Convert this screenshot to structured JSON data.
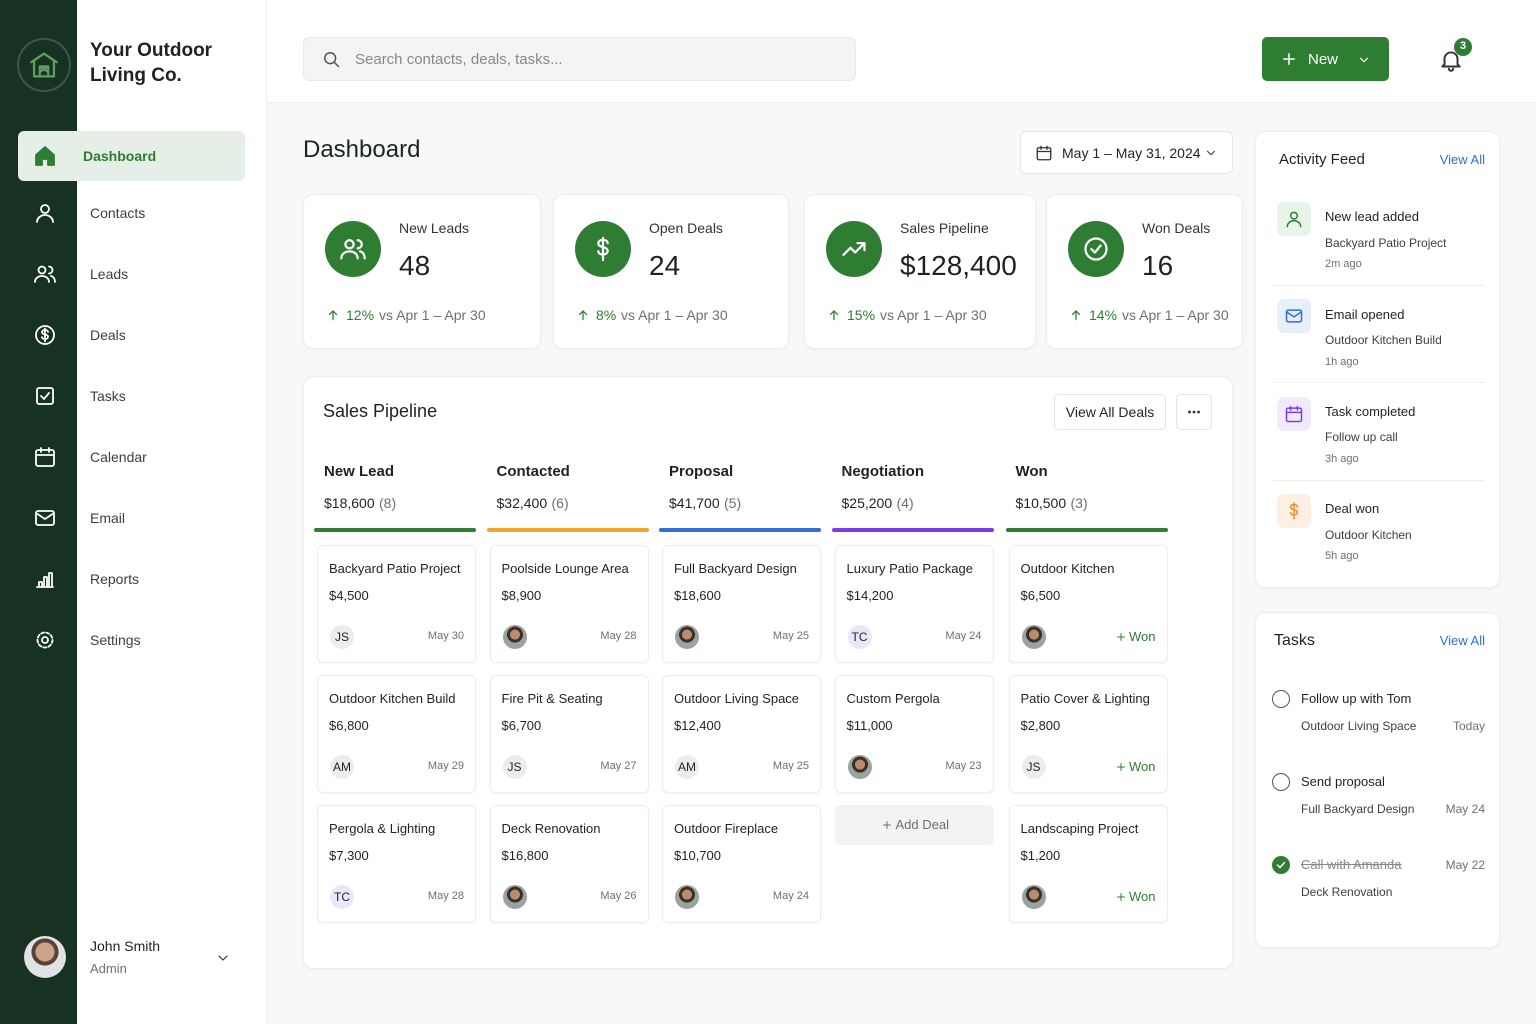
{
  "brand": {
    "name": "Your Outdoor Living Co."
  },
  "nav": [
    "Dashboard",
    "Contacts",
    "Leads",
    "Deals",
    "Tasks",
    "Calendar",
    "Email",
    "Reports",
    "Settings"
  ],
  "user": {
    "name": "John Smith",
    "role": "Admin"
  },
  "header": {
    "search_placeholder": "Search contacts, deals, tasks...",
    "new_button": "New",
    "notifications": "3"
  },
  "page": {
    "title": "Dashboard",
    "date_range": "May 1 – May 31, 2024"
  },
  "stats": [
    {
      "label": "New Leads",
      "value": "48",
      "change": "12%",
      "compare": "vs Apr 1 – Apr 30"
    },
    {
      "label": "Open Deals",
      "value": "24",
      "change": "8%",
      "compare": "vs Apr 1 – Apr 30"
    },
    {
      "label": "Sales Pipeline",
      "value": "$128,400",
      "change": "15%",
      "compare": "vs Apr 1 – Apr 30"
    },
    {
      "label": "Won Deals",
      "value": "16",
      "change": "14%",
      "compare": "vs Apr 1 – Apr 30"
    }
  ],
  "pipeline": {
    "title": "Sales Pipeline",
    "view_all": "View All Deals",
    "columns": [
      {
        "name": "New Lead",
        "total": "$18,600",
        "count": "(8)",
        "deals": [
          {
            "title": "Backyard Patio Project",
            "amount": "$4,500",
            "owner": "JS",
            "date": "May 30"
          },
          {
            "title": "Outdoor Kitchen Build",
            "amount": "$6,800",
            "owner": "AM",
            "date": "May 29"
          },
          {
            "title": "Pergola & Lighting",
            "amount": "$7,300",
            "owner": "TC",
            "date": "May 28"
          }
        ]
      },
      {
        "name": "Contacted",
        "total": "$32,400",
        "count": "(6)",
        "deals": [
          {
            "title": "Poolside Lounge Area",
            "amount": "$8,900",
            "date": "May 28"
          },
          {
            "title": "Fire Pit & Seating",
            "amount": "$6,700",
            "owner": "JS",
            "date": "May 27"
          },
          {
            "title": "Deck Renovation",
            "amount": "$16,800",
            "date": "May 26"
          }
        ]
      },
      {
        "name": "Proposal",
        "total": "$41,700",
        "count": "(5)",
        "deals": [
          {
            "title": "Full Backyard Design",
            "amount": "$18,600",
            "date": "May 25"
          },
          {
            "title": "Outdoor Living Space",
            "amount": "$12,400",
            "owner": "AM",
            "date": "May 25"
          },
          {
            "title": "Outdoor Fireplace",
            "amount": "$10,700",
            "date": "May 24"
          }
        ]
      },
      {
        "name": "Negotiation",
        "total": "$25,200",
        "count": "(4)",
        "add_deal": "Add Deal",
        "deals": [
          {
            "title": "Luxury Patio Package",
            "amount": "$14,200",
            "owner": "TC",
            "date": "May 24"
          },
          {
            "title": "Custom Pergola",
            "amount": "$11,000",
            "date": "May 23"
          }
        ]
      },
      {
        "name": "Won",
        "total": "$10,500",
        "count": "(3)",
        "deals": [
          {
            "title": "Outdoor Kitchen",
            "amount": "$6,500",
            "status": "Won"
          },
          {
            "title": "Patio Cover & Lighting",
            "amount": "$2,800",
            "owner": "JS",
            "status": "Won"
          },
          {
            "title": "Landscaping Project",
            "amount": "$1,200",
            "status": "Won"
          }
        ]
      }
    ]
  },
  "activity": {
    "title": "Activity Feed",
    "view_all": "View All",
    "items": [
      {
        "title": "New lead added",
        "subtitle": "Backyard Patio Project",
        "time": "2m ago"
      },
      {
        "title": "Email opened",
        "subtitle": "Outdoor Kitchen Build",
        "time": "1h ago"
      },
      {
        "title": "Task completed",
        "subtitle": "Follow up call",
        "time": "3h ago"
      },
      {
        "title": "Deal won",
        "subtitle": "Outdoor Kitchen",
        "time": "5h ago"
      }
    ]
  },
  "tasks": {
    "title": "Tasks",
    "view_all": "View All",
    "items": [
      {
        "title": "Follow up with Tom",
        "subtitle": "Outdoor Living Space",
        "due": "Today",
        "done": false
      },
      {
        "title": "Send proposal",
        "subtitle": "Full Backyard Design",
        "due": "May 24",
        "done": false
      },
      {
        "title": "Call with Amanda",
        "subtitle": "Deck Renovation",
        "due": "May 22",
        "done": true
      }
    ]
  }
}
